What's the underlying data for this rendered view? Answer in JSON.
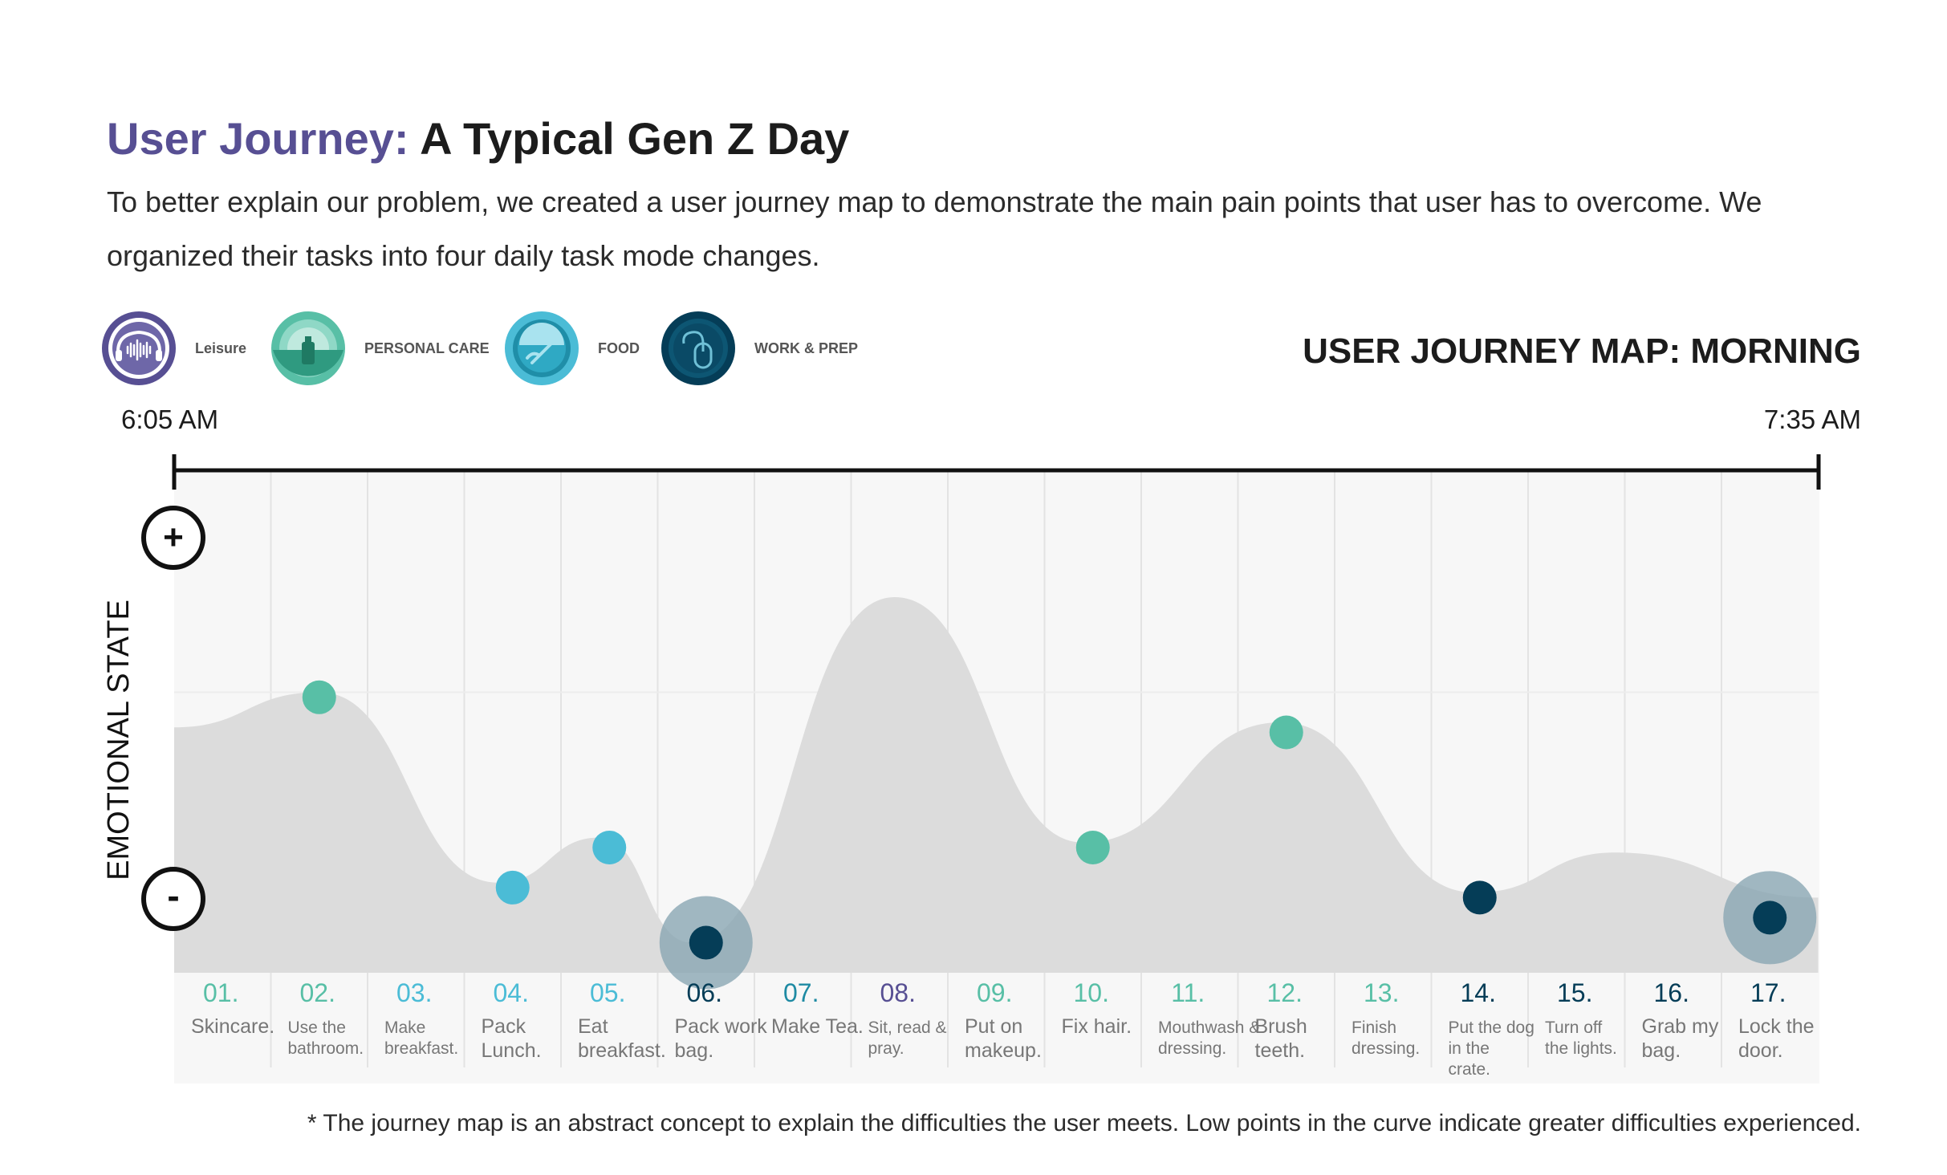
{
  "header": {
    "title_accent": "User Journey:",
    "title_rest": "A Typical Gen Z Day",
    "description": "To better explain our problem, we created a user journey map to demonstrate the main pain points that user has to overcome. We organized their tasks into four daily task mode changes."
  },
  "legend": [
    {
      "label": "Leisure",
      "icon": "soundwave-icon",
      "color": "#574f93"
    },
    {
      "label": "PERSONAL CARE",
      "icon": "bottle-icon",
      "color": "#58bfa6"
    },
    {
      "label": "FOOD",
      "icon": "plate-icon",
      "color": "#4bbcd6"
    },
    {
      "label": "WORK & PREP",
      "icon": "mouse-icon",
      "color": "#053d57"
    }
  ],
  "map_title": "USER JOURNEY MAP: MORNING",
  "timeline": {
    "start": "6:05 AM",
    "end": "7:35 AM"
  },
  "y_axis": {
    "label": "EMOTIONAL STATE",
    "plus": "+",
    "minus": "-"
  },
  "chart_data": {
    "type": "line",
    "title": "USER JOURNEY MAP: MORNING",
    "xlabel": "",
    "ylabel": "EMOTIONAL STATE",
    "ylim": [
      0,
      100
    ],
    "category_colors": {
      "leisure": "#574f93",
      "personal_care": "#58bfa6",
      "food": "#4bbcd6",
      "work_prep": "#053d57"
    },
    "steps": [
      {
        "num": "01.",
        "label": "Skincare.",
        "category": "personal_care",
        "value": null
      },
      {
        "num": "02.",
        "label": "Use the bathroom.",
        "category": "personal_care",
        "value": 55,
        "marker": "personal_care"
      },
      {
        "num": "03.",
        "label": "Make breakfast.",
        "category": "food",
        "value": null
      },
      {
        "num": "04.",
        "label": "Pack Lunch.",
        "category": "food",
        "value": 17,
        "marker": "food"
      },
      {
        "num": "05.",
        "label": "Eat breakfast.",
        "category": "food",
        "value": 25,
        "marker": "food"
      },
      {
        "num": "06.",
        "label": "Pack work bag.",
        "category": "work_prep",
        "value": 6,
        "marker": "work_prep",
        "highlight": true
      },
      {
        "num": "07.",
        "label": "Make Tea.",
        "category": "food_dark",
        "value": null
      },
      {
        "num": "08.",
        "label": "Sit, read & pray.",
        "category": "leisure",
        "value": null
      },
      {
        "num": "09.",
        "label": "Put on makeup.",
        "category": "personal_care",
        "value": null
      },
      {
        "num": "10.",
        "label": "Fix hair.",
        "category": "personal_care",
        "value": 25,
        "marker": "personal_care"
      },
      {
        "num": "11.",
        "label": "Mouthwash & dressing.",
        "category": "personal_care",
        "value": null
      },
      {
        "num": "12.",
        "label": "Brush teeth.",
        "category": "personal_care",
        "value": 48,
        "marker": "personal_care"
      },
      {
        "num": "13.",
        "label": "Finish dressing.",
        "category": "personal_care",
        "value": null
      },
      {
        "num": "14.",
        "label": "Put the dog in the crate.",
        "category": "work_prep",
        "value": 15,
        "marker": "work_prep"
      },
      {
        "num": "15.",
        "label": "Turn off the lights.",
        "category": "work_prep",
        "value": null
      },
      {
        "num": "16.",
        "label": "Grab my bag.",
        "category": "work_prep",
        "value": null
      },
      {
        "num": "17.",
        "label": "Lock the door.",
        "category": "work_prep",
        "value": 11,
        "marker": "work_prep",
        "highlight": true
      }
    ],
    "step_label_colors": {
      "personal_care": "#58bfa6",
      "food": "#4bbcd6",
      "food_dark": "#1e8aa3",
      "leisure": "#574f93",
      "work_prep": "#053d57"
    },
    "curve": [
      {
        "x": 0.0,
        "y": 49
      },
      {
        "x": 1.5,
        "y": 56
      },
      {
        "x": 3.35,
        "y": 18
      },
      {
        "x": 4.4,
        "y": 27
      },
      {
        "x": 5.35,
        "y": 6
      },
      {
        "x": 7.45,
        "y": 75
      },
      {
        "x": 9.4,
        "y": 26
      },
      {
        "x": 11.45,
        "y": 50
      },
      {
        "x": 13.45,
        "y": 16
      },
      {
        "x": 14.9,
        "y": 24
      },
      {
        "x": 17.0,
        "y": 15
      }
    ]
  },
  "footnote": "* The journey map is an abstract concept to explain the difficulties the user meets. Low points in the curve indicate greater difficulties experienced."
}
